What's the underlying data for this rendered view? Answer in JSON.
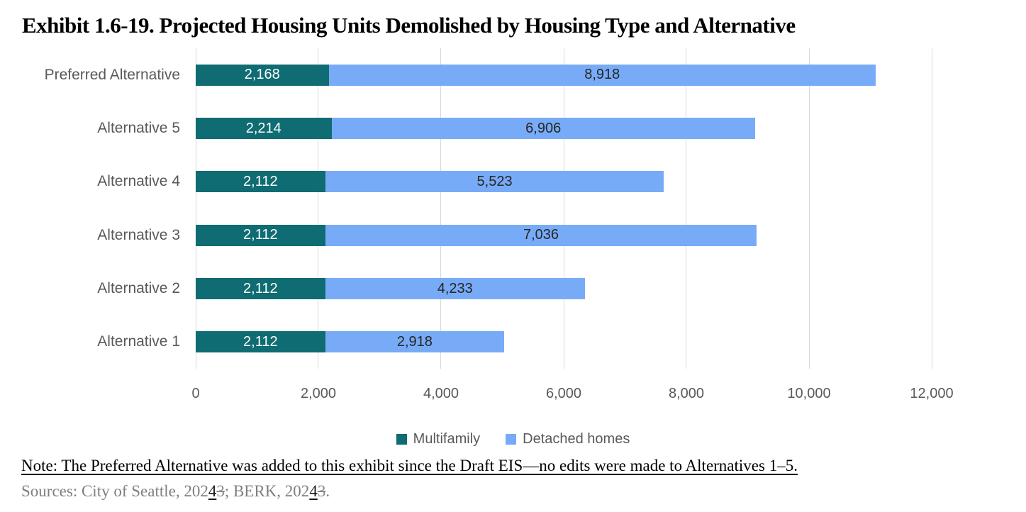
{
  "title": "Exhibit 1.6-19. Projected Housing Units Demolished by Housing Type and Alternative",
  "chart_data": {
    "type": "bar",
    "orientation": "horizontal",
    "stacked": true,
    "categories": [
      "Preferred Alternative",
      "Alternative 5",
      "Alternative 4",
      "Alternative 3",
      "Alternative 2",
      "Alternative 1"
    ],
    "series": [
      {
        "name": "Multifamily",
        "color": "#0e6c72",
        "label_color": "light",
        "values": [
          2168,
          2214,
          2112,
          2112,
          2112,
          2112
        ]
      },
      {
        "name": "Detached homes",
        "color": "#78abf7",
        "label_color": "dark",
        "values": [
          8918,
          6906,
          5523,
          7036,
          4233,
          2918
        ]
      }
    ],
    "bar_labels": [
      [
        "2,168",
        "2,214",
        "2,112",
        "2,112",
        "2,112",
        "2,112"
      ],
      [
        "8,918",
        "6,906",
        "5,523",
        "7,036",
        "4,233",
        "2,918"
      ]
    ],
    "xlim": [
      0,
      12000
    ],
    "x_ticks": [
      0,
      2000,
      4000,
      6000,
      8000,
      10000,
      12000
    ],
    "x_tick_labels": [
      "0",
      "2,000",
      "4,000",
      "6,000",
      "8,000",
      "10,000",
      "12,000"
    ],
    "grid": "vertical",
    "gridline_color": "#d9d9d9",
    "legend_position": "bottom",
    "xlabel": "",
    "ylabel": ""
  },
  "note": {
    "text": "Note: The Preferred Alternative was added to this exhibit since the Draft EIS—no edits were made to Alternatives 1–5."
  },
  "sources": {
    "prefix": "Sources: City of Seattle, 202",
    "inserted1": "4",
    "deleted1": "3",
    "middle": "; BERK, 202",
    "inserted2": "4",
    "deleted2": "3",
    "suffix": "."
  }
}
